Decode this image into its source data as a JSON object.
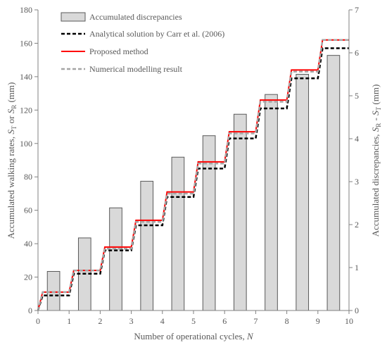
{
  "chart_data": {
    "type": "bar+line",
    "title": "",
    "xlabel": {
      "prefix": "Number of operational cycles, ",
      "var": "N"
    },
    "ylabel_left": {
      "prefix": "Accumulated walking rates, ",
      "s1": "S",
      "sub1": "T",
      "mid": " or ",
      "s2": "S",
      "sub2": "R",
      "suffix": " (mm)"
    },
    "ylabel_right": {
      "prefix": "Accumulated discrepancies, ",
      "s1": "S",
      "sub1": "R",
      "mid": " - ",
      "s2": "S",
      "sub2": "T",
      "suffix": " (mm)"
    },
    "xlim": [
      0,
      10
    ],
    "ylim_left": [
      0,
      180
    ],
    "ylim_right": [
      0,
      7
    ],
    "x_ticks": [
      0,
      1,
      2,
      3,
      4,
      5,
      6,
      7,
      8,
      9,
      10
    ],
    "y_ticks_left": [
      0,
      20,
      40,
      60,
      80,
      100,
      120,
      140,
      160,
      180
    ],
    "y_ticks_right": [
      0,
      1,
      2,
      3,
      4,
      5,
      6,
      7
    ],
    "grid": false,
    "legend_position": "top-left",
    "bars": {
      "name": "Accumulated discrepancies",
      "axis": "right",
      "color": "#d9d9d9",
      "edge_color": "#595959",
      "x": [
        0.5,
        1.5,
        2.5,
        3.5,
        4.5,
        5.5,
        6.5,
        7.5,
        8.5,
        9.5
      ],
      "values": [
        0.91,
        1.69,
        2.39,
        3.01,
        3.57,
        4.07,
        4.57,
        5.03,
        5.5,
        5.94
      ]
    },
    "series": [
      {
        "name": "Analytical solution by Carr et al. (2006)",
        "axis": "left",
        "color": "#000000",
        "style": "dashed",
        "steps": [
          {
            "from": 0,
            "to": 0.15,
            "start": 0,
            "end": 9
          },
          {
            "from": 0.15,
            "to": 1.0,
            "value": 9
          },
          {
            "from": 1.0,
            "to": 1.15,
            "start": 9,
            "end": 22
          },
          {
            "from": 1.15,
            "to": 2.0,
            "value": 22
          },
          {
            "from": 2.0,
            "to": 2.15,
            "start": 22,
            "end": 36
          },
          {
            "from": 2.15,
            "to": 3.0,
            "value": 36
          },
          {
            "from": 3.0,
            "to": 3.15,
            "start": 36,
            "end": 51
          },
          {
            "from": 3.15,
            "to": 4.0,
            "value": 51
          },
          {
            "from": 4.0,
            "to": 4.15,
            "start": 51,
            "end": 68
          },
          {
            "from": 4.15,
            "to": 5.0,
            "value": 68
          },
          {
            "from": 5.0,
            "to": 5.15,
            "start": 68,
            "end": 85
          },
          {
            "from": 5.15,
            "to": 6.0,
            "value": 85
          },
          {
            "from": 6.0,
            "to": 6.15,
            "start": 85,
            "end": 103
          },
          {
            "from": 6.15,
            "to": 7.0,
            "value": 103
          },
          {
            "from": 7.0,
            "to": 7.15,
            "start": 103,
            "end": 121
          },
          {
            "from": 7.15,
            "to": 8.0,
            "value": 121
          },
          {
            "from": 8.0,
            "to": 8.15,
            "start": 121,
            "end": 139
          },
          {
            "from": 8.15,
            "to": 9.0,
            "value": 139
          },
          {
            "from": 9.0,
            "to": 9.15,
            "start": 139,
            "end": 157
          },
          {
            "from": 9.15,
            "to": 10.0,
            "value": 157
          }
        ]
      },
      {
        "name": "Proposed method",
        "axis": "left",
        "color": "#ff0000",
        "style": "solid",
        "steps": [
          {
            "from": 0,
            "to": 0.15,
            "start": 0,
            "end": 11
          },
          {
            "from": 0.15,
            "to": 1.0,
            "value": 11
          },
          {
            "from": 1.0,
            "to": 1.15,
            "start": 11,
            "end": 24
          },
          {
            "from": 1.15,
            "to": 2.0,
            "value": 24
          },
          {
            "from": 2.0,
            "to": 2.15,
            "start": 24,
            "end": 38
          },
          {
            "from": 2.15,
            "to": 3.0,
            "value": 38
          },
          {
            "from": 3.0,
            "to": 3.15,
            "start": 38,
            "end": 54
          },
          {
            "from": 3.15,
            "to": 4.0,
            "value": 54
          },
          {
            "from": 4.0,
            "to": 4.15,
            "start": 54,
            "end": 71
          },
          {
            "from": 4.15,
            "to": 5.0,
            "value": 71
          },
          {
            "from": 5.0,
            "to": 5.15,
            "start": 71,
            "end": 89
          },
          {
            "from": 5.15,
            "to": 6.0,
            "value": 89
          },
          {
            "from": 6.0,
            "to": 6.15,
            "start": 89,
            "end": 107
          },
          {
            "from": 6.15,
            "to": 7.0,
            "value": 107
          },
          {
            "from": 7.0,
            "to": 7.15,
            "start": 107,
            "end": 126
          },
          {
            "from": 7.15,
            "to": 8.0,
            "value": 126
          },
          {
            "from": 8.0,
            "to": 8.15,
            "start": 126,
            "end": 144
          },
          {
            "from": 8.15,
            "to": 9.0,
            "value": 144
          },
          {
            "from": 9.0,
            "to": 9.15,
            "start": 144,
            "end": 162
          },
          {
            "from": 9.15,
            "to": 10.0,
            "value": 162
          }
        ]
      },
      {
        "name": "Numerical modelling result",
        "axis": "left",
        "color": "#a6a6a6",
        "style": "dashed",
        "steps": [
          {
            "from": 0,
            "to": 0.15,
            "start": 0,
            "end": 11
          },
          {
            "from": 0.15,
            "to": 1.0,
            "value": 11
          },
          {
            "from": 1.0,
            "to": 1.15,
            "start": 11,
            "end": 24
          },
          {
            "from": 1.15,
            "to": 2.0,
            "value": 24
          },
          {
            "from": 2.0,
            "to": 2.15,
            "start": 24,
            "end": 37
          },
          {
            "from": 2.15,
            "to": 3.0,
            "value": 37
          },
          {
            "from": 3.0,
            "to": 3.15,
            "start": 37,
            "end": 53
          },
          {
            "from": 3.15,
            "to": 4.0,
            "value": 53
          },
          {
            "from": 4.0,
            "to": 4.15,
            "start": 53,
            "end": 70
          },
          {
            "from": 4.15,
            "to": 5.0,
            "value": 70
          },
          {
            "from": 5.0,
            "to": 5.15,
            "start": 70,
            "end": 88
          },
          {
            "from": 5.15,
            "to": 6.0,
            "value": 88
          },
          {
            "from": 6.0,
            "to": 6.15,
            "start": 88,
            "end": 106
          },
          {
            "from": 6.15,
            "to": 7.0,
            "value": 106
          },
          {
            "from": 7.0,
            "to": 7.15,
            "start": 106,
            "end": 125
          },
          {
            "from": 7.15,
            "to": 8.0,
            "value": 125
          },
          {
            "from": 8.0,
            "to": 8.15,
            "start": 125,
            "end": 143
          },
          {
            "from": 8.15,
            "to": 9.0,
            "value": 143
          },
          {
            "from": 9.0,
            "to": 9.15,
            "start": 143,
            "end": 162
          },
          {
            "from": 9.15,
            "to": 10.0,
            "value": 162
          }
        ]
      }
    ]
  }
}
